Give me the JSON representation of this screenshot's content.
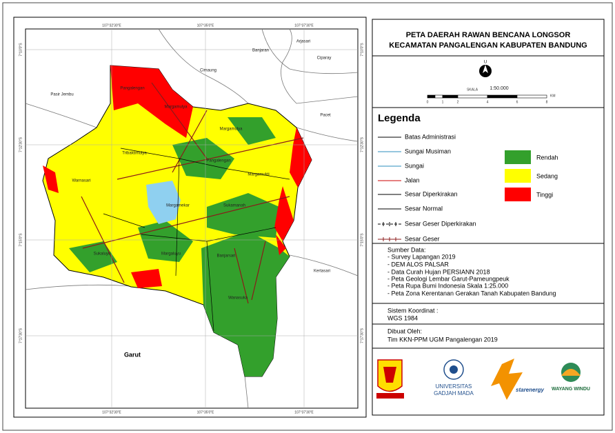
{
  "map": {
    "coord_x": [
      "107°32'30\"E",
      "107°35'0\"E",
      "107°37'30\"E"
    ],
    "coord_y": [
      "7°10'0\"S",
      "7°12'30\"S",
      "7°15'0\"S",
      "7°17'30\"S"
    ],
    "places": [
      "Pasir Jembu",
      "Banjaran",
      "Arjasari",
      "Cimaung",
      "Ciparay",
      "Pacet",
      "Kertasari",
      "Garut"
    ],
    "villages": [
      "Pangalengan",
      "Margamulya",
      "Margamulya",
      "Tribaktimulya",
      "Pangalengan",
      "Margamukti",
      "Warnasari",
      "Margamekar",
      "Sukamanah",
      "Sukaluyu",
      "Margaluyu",
      "Banjarsari",
      "Wanasuka"
    ]
  },
  "panel": {
    "title": [
      "PETA DAERAH RAWAN BENCANA LONGSOR",
      "KECAMATAN PANGALENGAN KABUPATEN BANDUNG"
    ],
    "north": "U",
    "scale": {
      "label": "SKALA",
      "ratio": "1:50.000",
      "ticks": [
        0,
        1,
        2,
        4,
        6,
        8
      ],
      "unit": "KM"
    },
    "legend": {
      "title": "Legenda",
      "lines": [
        "Batas Administrasi",
        "Sungai Musiman",
        "Sungai",
        "Jalan",
        "Sesar Diperkirakan",
        "Sesar Normal",
        "Sesar Geser Diperkirakan",
        "Sesar Geser"
      ],
      "classes": [
        "Rendah",
        "Sedang",
        "Tinggi"
      ]
    },
    "sources": {
      "heading": "Sumber Data:",
      "items": [
        "- Survey Lapangan 2019",
        "- DEM ALOS PALSAR",
        "- Data Curah Hujan PERSIANN 2018",
        "- Peta Geologi Lembar Garut-Pameungpeuk",
        "- Peta Rupa Bumi Indonesia Skala 1:25.000",
        "- Peta Zona Kerentanan Gerakan Tanah Kabupaten Bandung"
      ]
    },
    "coordinate_system": {
      "heading": "Sistem Koordinat :",
      "value": "WGS 1984"
    },
    "author": {
      "heading": "Dibuat Oleh:",
      "value": "Tim KKN-PPM UGM Pangalengan 2019"
    },
    "logos": [
      "UNIVERSITAS",
      "GADJAH MADA",
      "starenergy",
      "WAYANG WINDU"
    ]
  }
}
